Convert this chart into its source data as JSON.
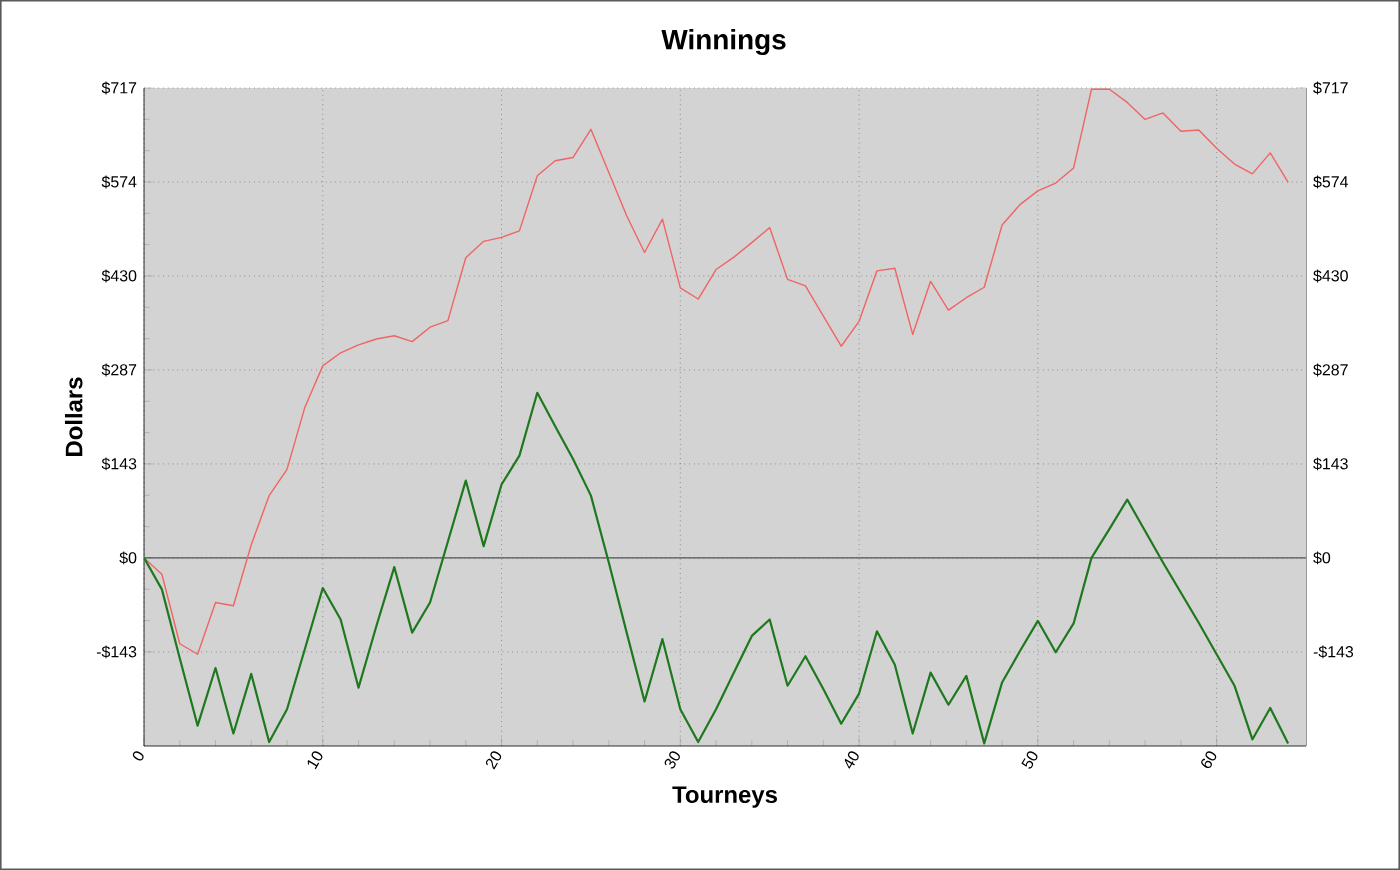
{
  "chart_data": {
    "type": "line",
    "title": "Winnings",
    "xlabel": "Tourneys",
    "ylabel": "Dollars",
    "x": [
      0,
      1,
      2,
      3,
      4,
      5,
      6,
      7,
      8,
      9,
      10,
      11,
      12,
      13,
      14,
      15,
      16,
      17,
      18,
      19,
      20,
      21,
      22,
      23,
      24,
      25,
      26,
      27,
      28,
      29,
      30,
      31,
      32,
      33,
      34,
      35,
      36,
      37,
      38,
      39,
      40,
      41,
      42,
      43,
      44,
      45,
      46,
      47,
      48,
      49,
      50,
      51,
      52,
      53,
      54,
      55,
      56,
      57,
      58,
      59,
      60,
      61,
      62,
      63,
      64
    ],
    "series": [
      {
        "color": "#f06464",
        "values": [
          0,
          -25,
          -131,
          -147,
          -68,
          -73,
          20,
          95,
          135,
          230,
          293,
          313,
          325,
          334,
          339,
          330,
          352,
          362,
          458,
          483,
          489,
          499,
          583,
          606,
          611,
          654,
          588,
          522,
          466,
          517,
          412,
          395,
          440,
          459,
          481,
          504,
          425,
          415,
          369,
          323,
          361,
          438,
          442,
          341,
          422,
          378,
          397,
          413,
          508,
          539,
          560,
          572,
          595,
          715,
          715,
          695,
          669,
          679,
          651,
          653,
          625,
          601,
          586,
          618,
          573
        ]
      },
      {
        "color": "#1e781e",
        "values": [
          0,
          -48,
          -153,
          -256,
          -168,
          -268,
          -177,
          -281,
          -231,
          -139,
          -46,
          -94,
          -198,
          -104,
          -14,
          -114,
          -68,
          25,
          118,
          18,
          112,
          156,
          252,
          201,
          151,
          95,
          -7,
          -114,
          -219,
          -124,
          -231,
          -281,
          -231,
          -175,
          -119,
          -94,
          -195,
          -150,
          -200,
          -253,
          -207,
          -112,
          -163,
          -268,
          -175,
          -224,
          -180,
          -283,
          -190,
          -142,
          -96,
          -144,
          -100,
          0,
          44,
          89,
          41,
          -7,
          -53,
          -99,
          -147,
          -195,
          -277,
          -229,
          -283
        ]
      }
    ],
    "xlim": [
      0,
      65
    ],
    "xticks": [
      0,
      10,
      20,
      30,
      40,
      50,
      60
    ],
    "ylim": [
      -287,
      717
    ],
    "yticks": [
      {
        "value": 717,
        "label": "$717"
      },
      {
        "value": 573.6,
        "label": "$574"
      },
      {
        "value": 430.2,
        "label": "$430"
      },
      {
        "value": 286.8,
        "label": "$287"
      },
      {
        "value": 143.4,
        "label": "$143"
      },
      {
        "value": 0,
        "label": "$0"
      },
      {
        "value": -143.4,
        "label": "-$143"
      }
    ],
    "y2lim": [
      -287,
      717
    ],
    "y2ticks": [
      {
        "value": 717,
        "label": "$717"
      },
      {
        "value": 573.6,
        "label": "$574"
      },
      {
        "value": 430.2,
        "label": "$430"
      },
      {
        "value": 286.8,
        "label": "$287"
      },
      {
        "value": 143.4,
        "label": "$143"
      },
      {
        "value": 0,
        "label": "$0"
      },
      {
        "value": -143.4,
        "label": "-$143"
      }
    ],
    "ref_lines": [
      {
        "axis": "y",
        "value": 0,
        "color": "#555555"
      }
    ],
    "grid": true,
    "marker": "none",
    "line_style": "solid"
  }
}
